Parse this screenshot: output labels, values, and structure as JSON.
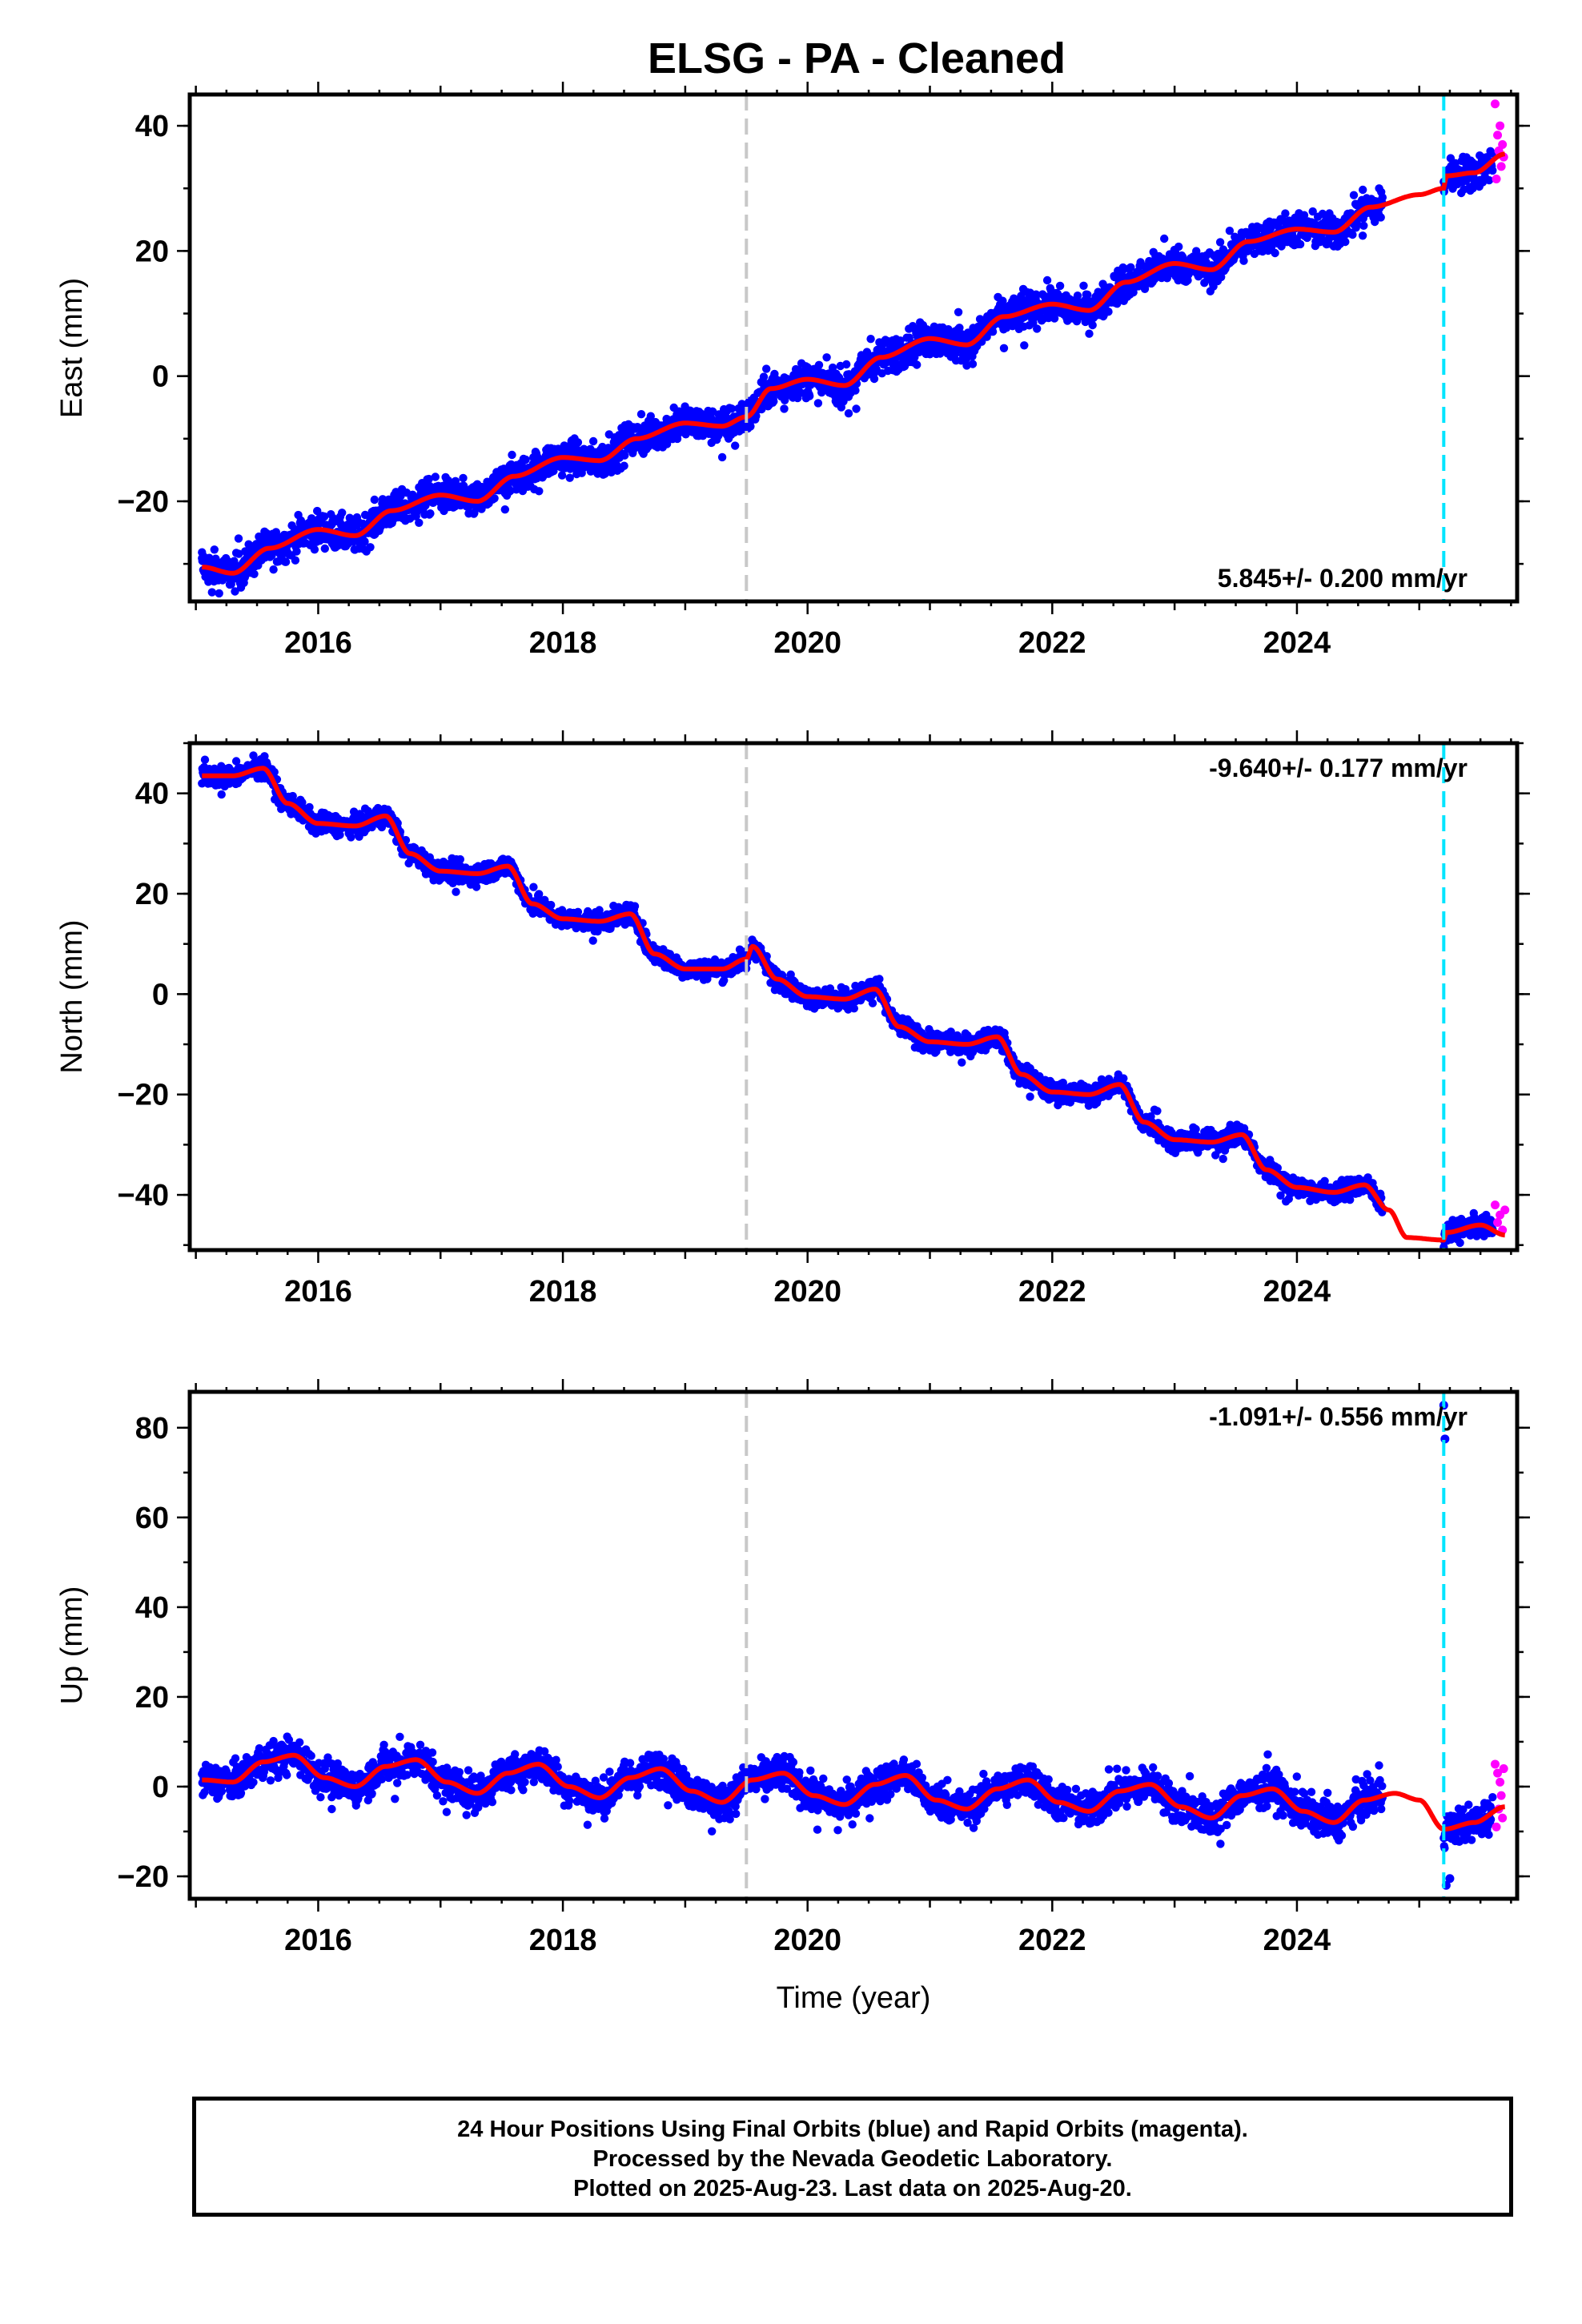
{
  "title": "ELSG  - PA - Cleaned",
  "footer": {
    "line1": "24 Hour Positions Using Final Orbits (blue) and Rapid Orbits (magenta).",
    "line2": "Processed by the Nevada Geodetic Laboratory.",
    "line3": "Plotted on 2025-Aug-23. Last data on 2025-Aug-20."
  },
  "colors": {
    "final_orbits": "#0000ff",
    "rapid_orbits": "#ff00ff",
    "fit_line": "#ff0000",
    "gray_event_line": "#c8c8c8",
    "cyan_event_line": "#00e5ff"
  },
  "chart_data": [
    {
      "type": "scatter",
      "ylabel": "East (mm)",
      "xlabel": "",
      "xlim": [
        2014.95,
        2025.8
      ],
      "ylim": [
        -36,
        45
      ],
      "xticks": [
        2016,
        2018,
        2020,
        2022,
        2024
      ],
      "xtick_labels": [
        "2016",
        "2018",
        "2020",
        "2022",
        "2024"
      ],
      "yticks": [
        -20,
        0,
        20,
        40
      ],
      "ytick_labels": [
        "−20",
        "0",
        "20",
        "40"
      ],
      "annotation": "5.845+/- 0.200 mm/yr",
      "annotation_position": "bottom-right",
      "events": [
        2019.5,
        2025.2
      ],
      "fit": {
        "x": [
          2015.05,
          2015.3,
          2015.6,
          2016.0,
          2016.3,
          2016.6,
          2017.0,
          2017.3,
          2017.6,
          2018.0,
          2018.3,
          2018.6,
          2019.0,
          2019.3,
          2019.5,
          2019.7,
          2020.0,
          2020.3,
          2020.6,
          2021.0,
          2021.3,
          2021.6,
          2022.0,
          2022.3,
          2022.6,
          2023.0,
          2023.3,
          2023.6,
          2024.0,
          2024.3,
          2024.6,
          2025.0,
          2025.2,
          2025.22,
          2025.45,
          2025.7
        ],
        "y": [
          -30.5,
          -31.5,
          -27.5,
          -24.5,
          -25.5,
          -21.5,
          -19.0,
          -20.0,
          -16.0,
          -13.0,
          -13.5,
          -10.0,
          -7.5,
          -8.0,
          -6.5,
          -2.0,
          -0.5,
          -1.5,
          3.0,
          6.0,
          5.0,
          9.5,
          11.5,
          10.5,
          15.0,
          18.0,
          17.0,
          21.5,
          23.5,
          23.0,
          27.0,
          29.0,
          30.0,
          32.0,
          32.5,
          35.5
        ]
      },
      "scatter_spread": 2.5,
      "rapid_points": {
        "x": [
          2025.62,
          2025.63,
          2025.64,
          2025.65,
          2025.66,
          2025.67,
          2025.68,
          2025.69
        ],
        "y": [
          43.5,
          31.5,
          38.5,
          36.0,
          40.0,
          33.5,
          37.0,
          35.0
        ]
      }
    },
    {
      "type": "scatter",
      "ylabel": "North (mm)",
      "xlabel": "",
      "xlim": [
        2014.95,
        2025.8
      ],
      "ylim": [
        -51,
        50
      ],
      "xticks": [
        2016,
        2018,
        2020,
        2022,
        2024
      ],
      "xtick_labels": [
        "2016",
        "2018",
        "2020",
        "2022",
        "2024"
      ],
      "yticks": [
        -40,
        -20,
        0,
        20,
        40
      ],
      "ytick_labels": [
        "−40",
        "−20",
        "0",
        "20",
        "40"
      ],
      "annotation": "-9.640+/- 0.177 mm/yr",
      "annotation_position": "top-right",
      "events": [
        2019.5,
        2025.2
      ],
      "fit": {
        "x": [
          2015.05,
          2015.3,
          2015.55,
          2015.75,
          2016.0,
          2016.3,
          2016.55,
          2016.75,
          2017.0,
          2017.3,
          2017.55,
          2017.75,
          2018.0,
          2018.3,
          2018.55,
          2018.75,
          2019.0,
          2019.3,
          2019.5,
          2019.55,
          2019.75,
          2020.0,
          2020.3,
          2020.55,
          2020.75,
          2021.0,
          2021.3,
          2021.55,
          2021.75,
          2022.0,
          2022.3,
          2022.55,
          2022.75,
          2023.0,
          2023.3,
          2023.55,
          2023.75,
          2024.0,
          2024.3,
          2024.55,
          2024.75,
          2024.9,
          2025.2,
          2025.22,
          2025.5,
          2025.7
        ],
        "y": [
          43.5,
          43.5,
          45.0,
          38.0,
          34.0,
          33.5,
          35.5,
          28.0,
          24.5,
          24.0,
          25.5,
          18.0,
          15.0,
          14.5,
          16.0,
          8.0,
          5.0,
          5.0,
          7.0,
          9.5,
          3.0,
          -0.5,
          -1.0,
          1.0,
          -6.5,
          -9.5,
          -10.0,
          -8.5,
          -16.0,
          -19.5,
          -20.0,
          -18.0,
          -25.5,
          -29.0,
          -29.5,
          -28.0,
          -35.0,
          -38.5,
          -39.5,
          -38.0,
          -43.0,
          -48.5,
          -49.0,
          -47.5,
          -46.0,
          -48.0
        ]
      },
      "scatter_spread": 1.8,
      "rapid_points": {
        "x": [
          2025.62,
          2025.64,
          2025.66,
          2025.68,
          2025.7
        ],
        "y": [
          -42.0,
          -45.5,
          -44.0,
          -47.0,
          -43.0
        ]
      }
    },
    {
      "type": "scatter",
      "ylabel": "Up (mm)",
      "xlabel": "Time (year)",
      "xlim": [
        2014.95,
        2025.8
      ],
      "ylim": [
        -25,
        88
      ],
      "xticks": [
        2016,
        2018,
        2020,
        2022,
        2024
      ],
      "xtick_labels": [
        "2016",
        "2018",
        "2020",
        "2022",
        "2024"
      ],
      "yticks": [
        -20,
        0,
        20,
        40,
        60,
        80
      ],
      "ytick_labels": [
        "−20",
        "0",
        "20",
        "40",
        "60",
        "80"
      ],
      "annotation": "-1.091+/- 0.556 mm/yr",
      "annotation_position": "top-right",
      "events": [
        2019.5,
        2025.2
      ],
      "fit": {
        "x": [
          2015.05,
          2015.3,
          2015.55,
          2015.8,
          2016.05,
          2016.3,
          2016.55,
          2016.8,
          2017.05,
          2017.3,
          2017.55,
          2017.8,
          2018.05,
          2018.3,
          2018.55,
          2018.8,
          2019.05,
          2019.3,
          2019.55,
          2019.8,
          2020.05,
          2020.3,
          2020.55,
          2020.8,
          2021.05,
          2021.3,
          2021.55,
          2021.8,
          2022.05,
          2022.3,
          2022.55,
          2022.8,
          2023.05,
          2023.3,
          2023.55,
          2023.8,
          2024.05,
          2024.3,
          2024.55,
          2024.8,
          2025.0,
          2025.2,
          2025.45,
          2025.7
        ],
        "y": [
          1.5,
          1.0,
          5.5,
          7.0,
          2.0,
          0.0,
          4.5,
          6.0,
          1.0,
          -1.5,
          3.0,
          5.0,
          0.0,
          -2.5,
          2.0,
          4.0,
          -1.0,
          -3.5,
          1.5,
          3.0,
          -2.0,
          -4.0,
          0.5,
          2.5,
          -3.0,
          -5.0,
          -0.5,
          1.5,
          -3.5,
          -5.5,
          -1.0,
          0.5,
          -4.5,
          -7.0,
          -2.0,
          -0.5,
          -5.5,
          -8.0,
          -3.0,
          -1.5,
          -3.0,
          -9.5,
          -8.0,
          -4.5
        ]
      },
      "scatter_spread": 3.5,
      "rapid_points": {
        "x": [
          2025.62,
          2025.63,
          2025.64,
          2025.65,
          2025.66,
          2025.67,
          2025.68,
          2025.69
        ],
        "y": [
          5.0,
          -9.0,
          3.0,
          -5.0,
          1.0,
          -2.0,
          -7.0,
          4.0
        ]
      },
      "outliers": {
        "x": [
          2025.2,
          2025.21,
          2025.22,
          2025.25
        ],
        "y": [
          85.0,
          77.5,
          -22.0,
          -20.5
        ]
      }
    }
  ]
}
